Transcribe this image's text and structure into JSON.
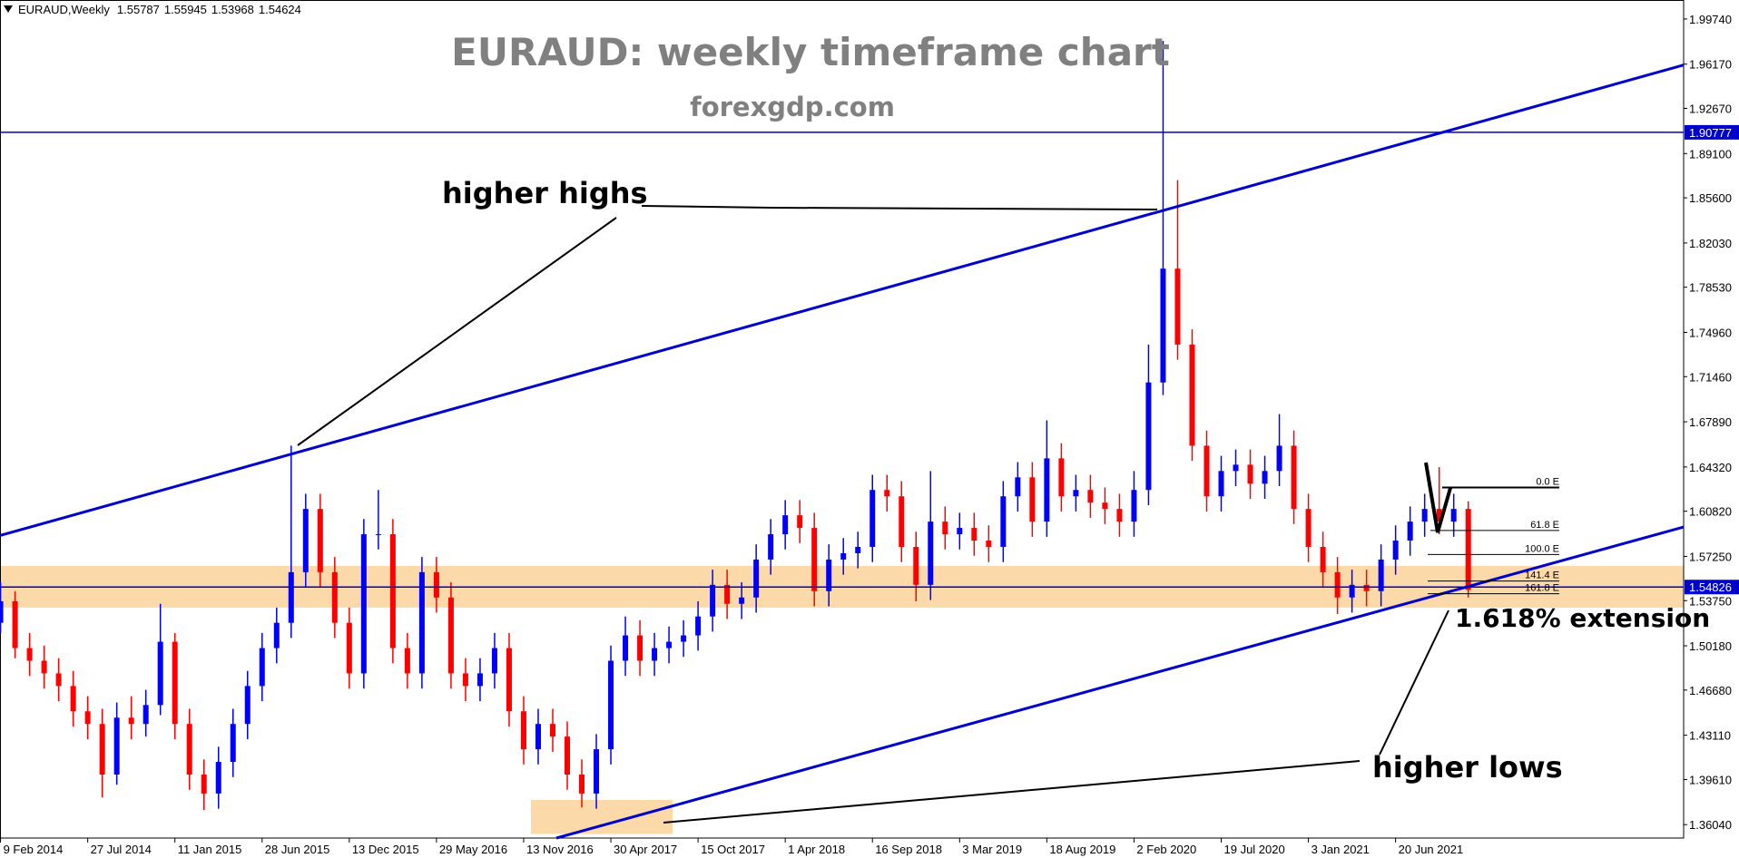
{
  "header": {
    "symbol": "EURAUD,Weekly",
    "values": [
      1.55787,
      1.55945,
      1.53968,
      1.54624
    ]
  },
  "chart_data": {
    "type": "candlestick",
    "title": "EURAUD: weekly timeframe chart",
    "subtitle": "forexgdp.com",
    "x": [
      "2014-02-09",
      "2014-03-09",
      "2014-04-06",
      "2014-05-04",
      "2014-06-01",
      "2014-06-29",
      "2014-07-27",
      "2014-08-24",
      "2014-09-21",
      "2014-10-19",
      "2014-11-16",
      "2014-12-14",
      "2015-01-11",
      "2015-02-08",
      "2015-03-08",
      "2015-04-05",
      "2015-05-03",
      "2015-05-31",
      "2015-06-28",
      "2015-07-26",
      "2015-08-23",
      "2015-09-20",
      "2015-10-18",
      "2015-11-15",
      "2015-12-13",
      "2016-01-10",
      "2016-02-07",
      "2016-03-06",
      "2016-04-03",
      "2016-05-01",
      "2016-05-29",
      "2016-06-26",
      "2016-07-24",
      "2016-08-21",
      "2016-09-18",
      "2016-10-16",
      "2016-11-13",
      "2016-12-11",
      "2017-01-08",
      "2017-02-05",
      "2017-03-05",
      "2017-04-02",
      "2017-04-30",
      "2017-05-28",
      "2017-06-25",
      "2017-07-23",
      "2017-08-20",
      "2017-09-17",
      "2017-10-15",
      "2017-11-12",
      "2017-12-10",
      "2018-01-07",
      "2018-02-04",
      "2018-03-04",
      "2018-04-01",
      "2018-04-29",
      "2018-05-27",
      "2018-06-24",
      "2018-07-22",
      "2018-08-19",
      "2018-09-16",
      "2018-10-14",
      "2018-11-11",
      "2018-12-09",
      "2019-01-06",
      "2019-02-03",
      "2019-03-03",
      "2019-03-31",
      "2019-04-28",
      "2019-05-26",
      "2019-06-23",
      "2019-07-21",
      "2019-08-18",
      "2019-09-15",
      "2019-10-13",
      "2019-11-10",
      "2019-12-08",
      "2020-01-05",
      "2020-02-02",
      "2020-03-01",
      "2020-03-29",
      "2020-04-26",
      "2020-05-24",
      "2020-06-21",
      "2020-07-19",
      "2020-08-16",
      "2020-09-13",
      "2020-10-11",
      "2020-11-08",
      "2020-12-06",
      "2021-01-03",
      "2021-01-31",
      "2021-02-28",
      "2021-03-28",
      "2021-04-25",
      "2021-05-23",
      "2021-06-20",
      "2021-07-18",
      "2021-08-15",
      "2021-09-12",
      "2021-10-10",
      "2021-11-07"
    ],
    "ohlc": [
      [
        1.52,
        1.552,
        1.512,
        1.537
      ],
      [
        1.537,
        1.545,
        1.492,
        1.5
      ],
      [
        1.5,
        1.512,
        1.478,
        1.49
      ],
      [
        1.49,
        1.502,
        1.468,
        1.48
      ],
      [
        1.48,
        1.492,
        1.458,
        1.47
      ],
      [
        1.47,
        1.482,
        1.438,
        1.45
      ],
      [
        1.45,
        1.462,
        1.428,
        1.44
      ],
      [
        1.44,
        1.452,
        1.382,
        1.4
      ],
      [
        1.4,
        1.457,
        1.392,
        1.445
      ],
      [
        1.445,
        1.462,
        1.428,
        1.44
      ],
      [
        1.44,
        1.467,
        1.43,
        1.455
      ],
      [
        1.455,
        1.535,
        1.447,
        1.505
      ],
      [
        1.505,
        1.512,
        1.428,
        1.44
      ],
      [
        1.44,
        1.452,
        1.388,
        1.4
      ],
      [
        1.4,
        1.412,
        1.372,
        1.385
      ],
      [
        1.385,
        1.422,
        1.373,
        1.41
      ],
      [
        1.41,
        1.452,
        1.398,
        1.44
      ],
      [
        1.44,
        1.482,
        1.428,
        1.47
      ],
      [
        1.47,
        1.512,
        1.458,
        1.5
      ],
      [
        1.5,
        1.532,
        1.488,
        1.52
      ],
      [
        1.52,
        1.66,
        1.508,
        1.56
      ],
      [
        1.56,
        1.622,
        1.548,
        1.61
      ],
      [
        1.61,
        1.622,
        1.548,
        1.56
      ],
      [
        1.56,
        1.572,
        1.508,
        1.52
      ],
      [
        1.52,
        1.532,
        1.468,
        1.48
      ],
      [
        1.48,
        1.602,
        1.468,
        1.59
      ],
      [
        1.59,
        1.625,
        1.578,
        1.59
      ],
      [
        1.59,
        1.602,
        1.488,
        1.5
      ],
      [
        1.5,
        1.512,
        1.468,
        1.48
      ],
      [
        1.48,
        1.572,
        1.468,
        1.56
      ],
      [
        1.56,
        1.572,
        1.528,
        1.54
      ],
      [
        1.54,
        1.552,
        1.468,
        1.48
      ],
      [
        1.48,
        1.492,
        1.458,
        1.47
      ],
      [
        1.47,
        1.492,
        1.458,
        1.48
      ],
      [
        1.48,
        1.512,
        1.468,
        1.5
      ],
      [
        1.5,
        1.512,
        1.438,
        1.45
      ],
      [
        1.45,
        1.462,
        1.408,
        1.42
      ],
      [
        1.42,
        1.452,
        1.408,
        1.44
      ],
      [
        1.44,
        1.452,
        1.418,
        1.43
      ],
      [
        1.43,
        1.442,
        1.388,
        1.4
      ],
      [
        1.4,
        1.412,
        1.374,
        1.385
      ],
      [
        1.385,
        1.432,
        1.373,
        1.42
      ],
      [
        1.42,
        1.502,
        1.408,
        1.49
      ],
      [
        1.49,
        1.525,
        1.478,
        1.51
      ],
      [
        1.51,
        1.522,
        1.478,
        1.49
      ],
      [
        1.49,
        1.512,
        1.478,
        1.5
      ],
      [
        1.5,
        1.517,
        1.488,
        1.505
      ],
      [
        1.505,
        1.522,
        1.493,
        1.51
      ],
      [
        1.51,
        1.537,
        1.498,
        1.525
      ],
      [
        1.525,
        1.562,
        1.513,
        1.55
      ],
      [
        1.55,
        1.562,
        1.523,
        1.535
      ],
      [
        1.535,
        1.552,
        1.523,
        1.54
      ],
      [
        1.54,
        1.582,
        1.528,
        1.57
      ],
      [
        1.57,
        1.602,
        1.558,
        1.59
      ],
      [
        1.59,
        1.617,
        1.578,
        1.605
      ],
      [
        1.605,
        1.617,
        1.583,
        1.595
      ],
      [
        1.595,
        1.607,
        1.533,
        1.545
      ],
      [
        1.545,
        1.582,
        1.533,
        1.57
      ],
      [
        1.57,
        1.587,
        1.558,
        1.575
      ],
      [
        1.575,
        1.592,
        1.563,
        1.58
      ],
      [
        1.58,
        1.637,
        1.568,
        1.625
      ],
      [
        1.625,
        1.637,
        1.608,
        1.62
      ],
      [
        1.62,
        1.632,
        1.568,
        1.58
      ],
      [
        1.58,
        1.592,
        1.537,
        1.55
      ],
      [
        1.55,
        1.64,
        1.538,
        1.6
      ],
      [
        1.6,
        1.612,
        1.578,
        1.59
      ],
      [
        1.59,
        1.607,
        1.578,
        1.595
      ],
      [
        1.595,
        1.607,
        1.573,
        1.585
      ],
      [
        1.585,
        1.597,
        1.568,
        1.58
      ],
      [
        1.58,
        1.632,
        1.568,
        1.62
      ],
      [
        1.62,
        1.647,
        1.608,
        1.635
      ],
      [
        1.635,
        1.647,
        1.588,
        1.6
      ],
      [
        1.6,
        1.68,
        1.588,
        1.65
      ],
      [
        1.65,
        1.662,
        1.608,
        1.62
      ],
      [
        1.62,
        1.637,
        1.608,
        1.625
      ],
      [
        1.625,
        1.637,
        1.603,
        1.615
      ],
      [
        1.615,
        1.627,
        1.598,
        1.61
      ],
      [
        1.61,
        1.622,
        1.588,
        1.6
      ],
      [
        1.6,
        1.64,
        1.588,
        1.625
      ],
      [
        1.625,
        1.74,
        1.613,
        1.71
      ],
      [
        1.71,
        1.98,
        1.7,
        1.8
      ],
      [
        1.8,
        1.87,
        1.728,
        1.74
      ],
      [
        1.74,
        1.752,
        1.648,
        1.66
      ],
      [
        1.66,
        1.672,
        1.608,
        1.62
      ],
      [
        1.62,
        1.652,
        1.608,
        1.64
      ],
      [
        1.64,
        1.657,
        1.628,
        1.645
      ],
      [
        1.645,
        1.657,
        1.618,
        1.63
      ],
      [
        1.63,
        1.652,
        1.618,
        1.64
      ],
      [
        1.64,
        1.685,
        1.628,
        1.66
      ],
      [
        1.66,
        1.672,
        1.598,
        1.61
      ],
      [
        1.61,
        1.622,
        1.568,
        1.58
      ],
      [
        1.58,
        1.592,
        1.548,
        1.56
      ],
      [
        1.56,
        1.572,
        1.527,
        1.54
      ],
      [
        1.54,
        1.562,
        1.528,
        1.55
      ],
      [
        1.55,
        1.562,
        1.533,
        1.545
      ],
      [
        1.545,
        1.582,
        1.533,
        1.57
      ],
      [
        1.57,
        1.597,
        1.558,
        1.585
      ],
      [
        1.585,
        1.612,
        1.573,
        1.6
      ],
      [
        1.6,
        1.622,
        1.588,
        1.61
      ],
      [
        1.61,
        1.643,
        1.59,
        1.6
      ],
      [
        1.6,
        1.622,
        1.588,
        1.61
      ],
      [
        1.61,
        1.616,
        1.54,
        1.546
      ]
    ],
    "up_color": "#0000ff",
    "down_color": "#ff0000",
    "xlim": [
      "2014-02-08",
      "2022-12-27"
    ],
    "xticks": [
      {
        "value": "2014-02-09",
        "label": "9 Feb 2014"
      },
      {
        "value": "2014-07-27",
        "label": "27 Jul 2014"
      },
      {
        "value": "2015-01-11",
        "label": "11 Jan 2015"
      },
      {
        "value": "2015-06-28",
        "label": "28 Jun 2015"
      },
      {
        "value": "2015-12-13",
        "label": "13 Dec 2015"
      },
      {
        "value": "2016-05-29",
        "label": "29 May 2016"
      },
      {
        "value": "2016-11-13",
        "label": "13 Nov 2016"
      },
      {
        "value": "2017-04-30",
        "label": "30 Apr 2017"
      },
      {
        "value": "2017-10-15",
        "label": "15 Oct 2017"
      },
      {
        "value": "2018-04-01",
        "label": "1 Apr 2018"
      },
      {
        "value": "2018-09-16",
        "label": "16 Sep 2018"
      },
      {
        "value": "2019-03-03",
        "label": "3 Mar 2019"
      },
      {
        "value": "2019-08-18",
        "label": "18 Aug 2019"
      },
      {
        "value": "2020-02-02",
        "label": "2 Feb 2020"
      },
      {
        "value": "2020-07-19",
        "label": "19 Jul 2020"
      },
      {
        "value": "2021-01-03",
        "label": "3 Jan 2021"
      },
      {
        "value": "2021-06-20",
        "label": "20 Jun 2021"
      }
    ],
    "ylim": [
      1.3498,
      2.0124
    ],
    "yticks": [
      {
        "value": 1.9974,
        "label": "1.99740"
      },
      {
        "value": 1.9617,
        "label": "1.96170"
      },
      {
        "value": 1.9267,
        "label": "1.92670"
      },
      {
        "value": 1.891,
        "label": "1.89100"
      },
      {
        "value": 1.856,
        "label": "1.85600"
      },
      {
        "value": 1.8203,
        "label": "1.82030"
      },
      {
        "value": 1.7853,
        "label": "1.78530"
      },
      {
        "value": 1.7496,
        "label": "1.74960"
      },
      {
        "value": 1.7146,
        "label": "1.71460"
      },
      {
        "value": 1.6789,
        "label": "1.67890"
      },
      {
        "value": 1.6432,
        "label": "1.64320"
      },
      {
        "value": 1.6082,
        "label": "1.60820"
      },
      {
        "value": 1.5725,
        "label": "1.57250"
      },
      {
        "value": 1.5375,
        "label": "1.53750"
      },
      {
        "value": 1.5018,
        "label": "1.50180"
      },
      {
        "value": 1.4668,
        "label": "1.46680"
      },
      {
        "value": 1.4311,
        "label": "1.43110"
      },
      {
        "value": 1.3961,
        "label": "1.39610"
      },
      {
        "value": 1.3604,
        "label": "1.36040"
      }
    ],
    "hlines": [
      {
        "value": 1.90777,
        "color": "#0000cc"
      },
      {
        "value": 1.54826,
        "color": "#0000cc"
      }
    ],
    "trendlines": [
      {
        "x": [
          "2014-02-08",
          "2022-12-27"
        ],
        "y": [
          1.589,
          1.961
        ],
        "color": "#0000cc"
      },
      {
        "x": [
          "2017-01-15",
          "2022-12-27"
        ],
        "y": [
          1.3498,
          1.5957
        ],
        "color": "#0000cc"
      }
    ],
    "zones": [
      {
        "x": [
          "2014-02-08",
          "2022-12-27"
        ],
        "y": [
          1.532,
          1.565
        ],
        "color": "#fcd9a8"
      },
      {
        "x": [
          "2016-11-27",
          "2017-08-27"
        ],
        "y": [
          1.353,
          1.38
        ],
        "color": "#fcd9a8"
      }
    ],
    "fib_levels": [
      {
        "label": "0.0 E",
        "value": 1.627
      },
      {
        "label": "61.8 E",
        "value": 1.593
      },
      {
        "label": "100.0 E",
        "value": 1.574
      },
      {
        "label": "141.4 E",
        "value": 1.553
      },
      {
        "label": "161.8 E",
        "value": 1.543
      }
    ],
    "annotations": [
      "higher highs",
      "higher lows",
      "1.618% extension"
    ]
  }
}
